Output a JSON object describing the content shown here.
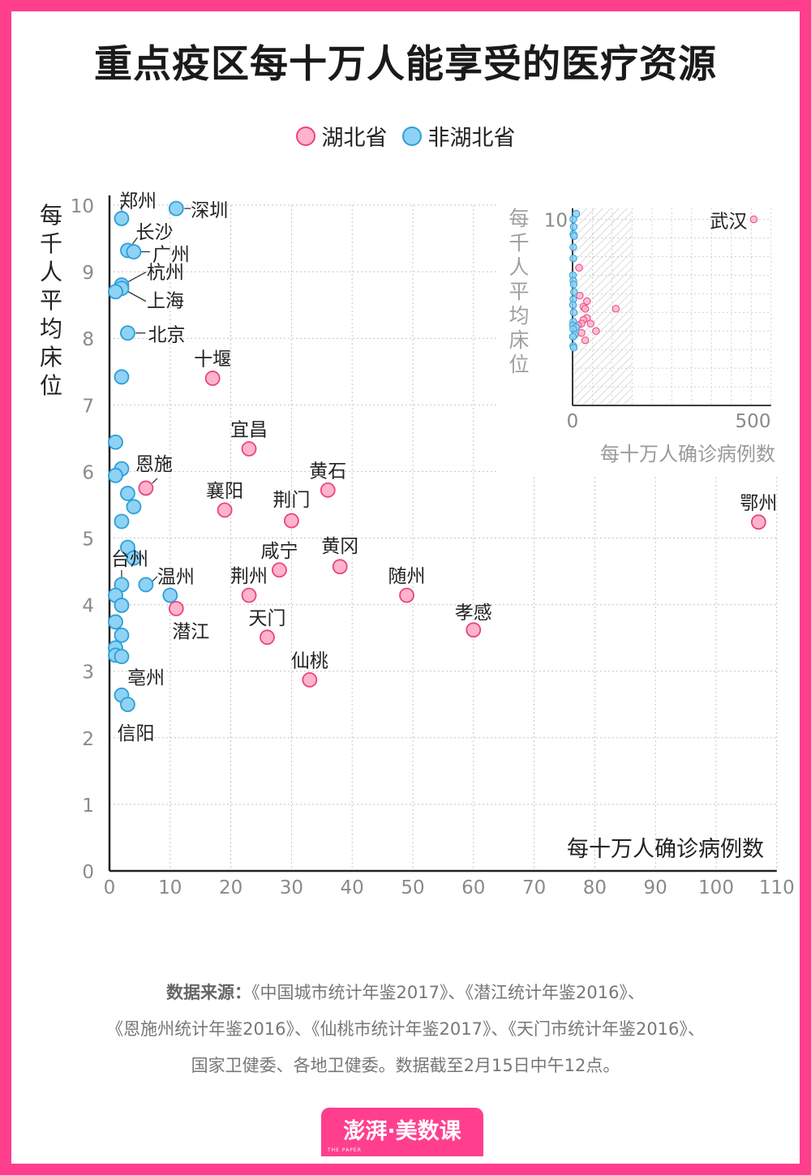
{
  "title": "重点疫区每十万人能享受的医疗资源",
  "legend": {
    "hubei": "湖北省",
    "non_hubei": "非湖北省"
  },
  "colors": {
    "frame": "#ff3f8e",
    "hubei_fill": "#ffb3cc",
    "hubei_stroke": "#e8457f",
    "non_hubei_fill": "#8fd2f4",
    "non_hubei_stroke": "#2a9fd9"
  },
  "chart_data": [
    {
      "type": "scatter",
      "title": "",
      "xlabel": "每十万人确诊病例数",
      "ylabel": "每千人平均床位",
      "xlim": [
        0,
        110
      ],
      "ylim": [
        0,
        10
      ],
      "xticks": [
        "0",
        "10",
        "20",
        "30",
        "40",
        "50",
        "60",
        "70",
        "80",
        "90",
        "100",
        "110"
      ],
      "yticks": [
        "0",
        "1",
        "2",
        "3",
        "4",
        "5",
        "6",
        "7",
        "8",
        "9",
        "10"
      ],
      "grid": true,
      "series": [
        {
          "name": "湖北省",
          "points": [
            {
              "label": "十堰",
              "x": 17,
              "y": 7.4
            },
            {
              "label": "宜昌",
              "x": 23,
              "y": 6.34
            },
            {
              "label": "恩施",
              "x": 6,
              "y": 5.75
            },
            {
              "label": "襄阳",
              "x": 19,
              "y": 5.42
            },
            {
              "label": "黄石",
              "x": 36,
              "y": 5.72
            },
            {
              "label": "荆门",
              "x": 30,
              "y": 5.26
            },
            {
              "label": "鄂州",
              "x": 107,
              "y": 5.24
            },
            {
              "label": "咸宁",
              "x": 28,
              "y": 4.52
            },
            {
              "label": "黄冈",
              "x": 38,
              "y": 4.57
            },
            {
              "label": "荆州",
              "x": 23,
              "y": 4.14
            },
            {
              "label": "随州",
              "x": 49,
              "y": 4.14
            },
            {
              "label": "潜江",
              "x": 11,
              "y": 3.94
            },
            {
              "label": "孝感",
              "x": 60,
              "y": 3.62
            },
            {
              "label": "天门",
              "x": 26,
              "y": 3.51
            },
            {
              "label": "仙桃",
              "x": 33,
              "y": 2.87
            }
          ]
        },
        {
          "name": "非湖北省",
          "points": [
            {
              "label": "深圳",
              "x": 11,
              "y": 9.95
            },
            {
              "label": "郑州",
              "x": 2,
              "y": 9.8
            },
            {
              "label": "长沙",
              "x": 3,
              "y": 9.32
            },
            {
              "label": "广州",
              "x": 4,
              "y": 9.3
            },
            {
              "label": "杭州",
              "x": 2,
              "y": 8.8
            },
            {
              "label": "上海",
              "x": 2,
              "y": 8.75
            },
            {
              "label": "",
              "x": 1,
              "y": 8.7
            },
            {
              "label": "北京",
              "x": 3,
              "y": 8.08
            },
            {
              "label": "",
              "x": 2,
              "y": 7.42
            },
            {
              "label": "",
              "x": 1,
              "y": 6.44
            },
            {
              "label": "",
              "x": 2,
              "y": 6.04
            },
            {
              "label": "",
              "x": 1,
              "y": 5.94
            },
            {
              "label": "",
              "x": 3,
              "y": 5.67
            },
            {
              "label": "",
              "x": 4,
              "y": 5.47
            },
            {
              "label": "",
              "x": 2,
              "y": 5.25
            },
            {
              "label": "",
              "x": 3,
              "y": 4.86
            },
            {
              "label": "",
              "x": 4,
              "y": 4.7
            },
            {
              "label": "台州",
              "x": 2,
              "y": 4.3
            },
            {
              "label": "温州",
              "x": 6,
              "y": 4.3
            },
            {
              "label": "",
              "x": 1,
              "y": 4.14
            },
            {
              "label": "",
              "x": 10,
              "y": 4.14
            },
            {
              "label": "",
              "x": 2,
              "y": 3.99
            },
            {
              "label": "",
              "x": 1,
              "y": 3.74
            },
            {
              "label": "",
              "x": 2,
              "y": 3.54
            },
            {
              "label": "",
              "x": 1,
              "y": 3.35
            },
            {
              "label": "",
              "x": 1,
              "y": 3.24
            },
            {
              "label": "",
              "x": 2,
              "y": 3.22
            },
            {
              "label": "亳州",
              "x": 2,
              "y": 2.64
            },
            {
              "label": "信阳",
              "x": 3,
              "y": 2.5
            }
          ]
        }
      ]
    },
    {
      "type": "scatter",
      "title": "",
      "xlabel": "每十万人确诊病例数",
      "ylabel": "每千人平均床位",
      "xlim": [
        0,
        550
      ],
      "ylim": [
        5,
        10.3
      ],
      "xticks": [
        "0",
        "500"
      ],
      "yticks": [
        "10"
      ],
      "shaded_range_x": [
        0,
        165
      ],
      "grid": true,
      "series": [
        {
          "name": "湖北省",
          "points": [
            {
              "label": "武汉",
              "x": 502,
              "y": 10.0
            },
            {
              "label": "",
              "x": 18,
              "y": 8.7
            },
            {
              "label": "",
              "x": 20,
              "y": 7.95
            },
            {
              "label": "",
              "x": 40,
              "y": 7.8
            },
            {
              "label": "",
              "x": 30,
              "y": 7.65
            },
            {
              "label": "",
              "x": 120,
              "y": 7.6
            },
            {
              "label": "",
              "x": 35,
              "y": 7.6
            },
            {
              "label": "",
              "x": 40,
              "y": 7.35
            },
            {
              "label": "",
              "x": 30,
              "y": 7.3
            },
            {
              "label": "",
              "x": 50,
              "y": 7.2
            },
            {
              "label": "",
              "x": 25,
              "y": 7.2
            },
            {
              "label": "",
              "x": 15,
              "y": 7.15
            },
            {
              "label": "",
              "x": 65,
              "y": 7.0
            },
            {
              "label": "",
              "x": 25,
              "y": 6.95
            },
            {
              "label": "",
              "x": 35,
              "y": 6.75
            }
          ]
        },
        {
          "name": "非湖北省",
          "points": [
            {
              "label": "",
              "x": 10,
              "y": 10.15
            },
            {
              "label": "",
              "x": 2,
              "y": 10.0
            },
            {
              "label": "",
              "x": 3,
              "y": 9.8
            },
            {
              "label": "",
              "x": 2,
              "y": 9.6
            },
            {
              "label": "",
              "x": 4,
              "y": 9.55
            },
            {
              "label": "",
              "x": 2,
              "y": 9.25
            },
            {
              "label": "",
              "x": 2,
              "y": 8.95
            },
            {
              "label": "",
              "x": 1,
              "y": 8.5
            },
            {
              "label": "",
              "x": 2,
              "y": 8.35
            },
            {
              "label": "",
              "x": 3,
              "y": 8.25
            },
            {
              "label": "",
              "x": 4,
              "y": 8.05
            },
            {
              "label": "",
              "x": 2,
              "y": 7.85
            },
            {
              "label": "",
              "x": 1,
              "y": 7.7
            },
            {
              "label": "",
              "x": 3,
              "y": 7.5
            },
            {
              "label": "",
              "x": 2,
              "y": 7.25
            },
            {
              "label": "",
              "x": 1,
              "y": 7.15
            },
            {
              "label": "",
              "x": 10,
              "y": 7.1
            },
            {
              "label": "",
              "x": 2,
              "y": 7.05
            },
            {
              "label": "",
              "x": 6,
              "y": 6.9
            },
            {
              "label": "",
              "x": 1,
              "y": 6.85
            },
            {
              "label": "",
              "x": 2,
              "y": 6.6
            },
            {
              "label": "",
              "x": 3,
              "y": 6.55
            }
          ]
        }
      ]
    }
  ],
  "source": {
    "label": "数据来源：",
    "line1": "《中国城市统计年鉴2017》、《潜江统计年鉴2016》、",
    "line2": "《恩施州统计年鉴2016》、《仙桃市统计年鉴2017》、《天门市统计年鉴2016》、",
    "line3": "国家卫健委、各地卫健委。数据截至2月15日中午12点。"
  },
  "logo": {
    "text": "澎湃·美数课",
    "sub": "THE PAPER"
  }
}
